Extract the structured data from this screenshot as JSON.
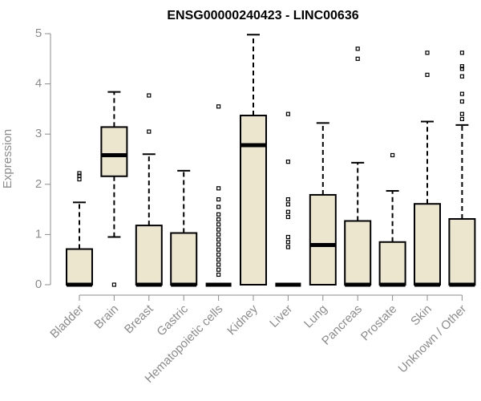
{
  "chart_data": {
    "type": "boxplot",
    "title": "ENSG00000240423 - LINC00636",
    "xlabel": "",
    "ylabel": "Expression",
    "ylim": [
      0,
      5
    ],
    "yticks": [
      "0",
      "1",
      "2",
      "3",
      "4",
      "5"
    ],
    "grid": false,
    "legend": "none",
    "box_fill": "#ede6cf",
    "box_stroke": "#000000",
    "categories": [
      "Bladder",
      "Brain",
      "Breast",
      "Gastric",
      "Hematopoietic cells",
      "Kidney",
      "Liver",
      "Lung",
      "Pancreas",
      "Prostate",
      "Skin",
      "Unknown / Other"
    ],
    "boxes": [
      {
        "label": "Bladder",
        "low": 0,
        "q1": 0,
        "median": 0,
        "q3": 0.71,
        "high": 1.64,
        "outliers": [
          2.1,
          2.17,
          2.22
        ]
      },
      {
        "label": "Brain",
        "low": 0.95,
        "q1": 2.16,
        "median": 2.58,
        "q3": 3.14,
        "high": 3.84,
        "outliers": [
          0
        ]
      },
      {
        "label": "Breast",
        "low": 0,
        "q1": 0,
        "median": 0,
        "q3": 1.18,
        "high": 2.6,
        "outliers": [
          3.05,
          3.77
        ]
      },
      {
        "label": "Gastric",
        "low": 0,
        "q1": 0,
        "median": 0,
        "q3": 1.03,
        "high": 2.27,
        "outliers": []
      },
      {
        "label": "Hematopoietic cells",
        "low": 0,
        "q1": 0,
        "median": 0,
        "q3": 0,
        "high": 0,
        "outliers": [
          0.2,
          0.3,
          0.4,
          0.5,
          0.6,
          0.7,
          0.8,
          0.9,
          1.0,
          1.1,
          1.2,
          1.3,
          1.4,
          1.55,
          1.7,
          1.92,
          3.55
        ]
      },
      {
        "label": "Kidney",
        "low": 0,
        "q1": 0,
        "median": 2.78,
        "q3": 3.37,
        "high": 4.98,
        "outliers": []
      },
      {
        "label": "Liver",
        "low": 0,
        "q1": 0,
        "median": 0,
        "q3": 0,
        "high": 0,
        "outliers": [
          0.75,
          0.85,
          0.95,
          1.35,
          1.45,
          1.6,
          1.7,
          2.45,
          3.4
        ]
      },
      {
        "label": "Lung",
        "low": 0,
        "q1": 0,
        "median": 0.79,
        "q3": 1.79,
        "high": 3.22,
        "outliers": []
      },
      {
        "label": "Pancreas",
        "low": 0,
        "q1": 0,
        "median": 0,
        "q3": 1.27,
        "high": 2.43,
        "outliers": [
          4.5,
          4.7
        ]
      },
      {
        "label": "Prostate",
        "low": 0,
        "q1": 0,
        "median": 0,
        "q3": 0.85,
        "high": 1.87,
        "outliers": [
          2.58
        ]
      },
      {
        "label": "Skin",
        "low": 0,
        "q1": 0,
        "median": 0,
        "q3": 1.61,
        "high": 3.25,
        "outliers": [
          4.18,
          4.62
        ]
      },
      {
        "label": "Unknown / Other",
        "low": 0,
        "q1": 0,
        "median": 0,
        "q3": 1.31,
        "high": 3.18,
        "outliers": [
          3.3,
          3.4,
          3.65,
          3.8,
          4.15,
          4.3,
          4.35,
          4.62
        ]
      }
    ]
  }
}
